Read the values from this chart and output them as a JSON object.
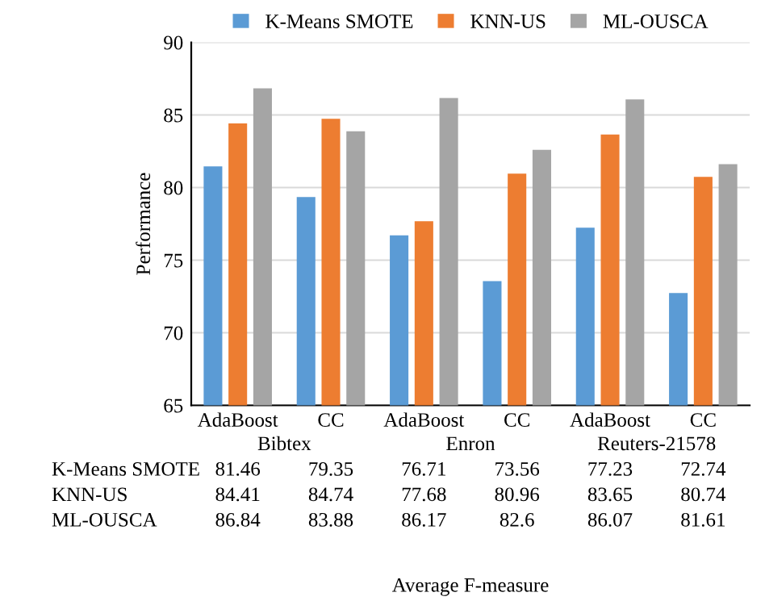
{
  "chart_data": {
    "type": "bar",
    "categories": [
      "AdaBoost",
      "CC",
      "AdaBoost",
      "CC",
      "AdaBoost",
      "CC"
    ],
    "series": [
      {
        "name": "K-Means SMOTE",
        "color": "#5b9bd5",
        "values": [
          81.46,
          79.35,
          76.71,
          73.56,
          77.23,
          72.74
        ]
      },
      {
        "name": "KNN-US",
        "color": "#ed7d31",
        "values": [
          84.41,
          84.74,
          77.68,
          80.96,
          83.65,
          80.74
        ]
      },
      {
        "name": "ML-OUSCA",
        "color": "#a5a5a5",
        "values": [
          86.84,
          83.88,
          86.17,
          82.6,
          86.07,
          81.61
        ]
      }
    ],
    "annotations": [
      "Bibtex",
      "Enron",
      "Reuters-21578",
      "Average F-measure"
    ],
    "ylabel": "Performance",
    "ylim": [
      65,
      90
    ],
    "yticks": [
      65,
      70,
      75,
      80,
      85,
      90
    ],
    "grid": "y",
    "legend": "top",
    "data_labels": true
  }
}
